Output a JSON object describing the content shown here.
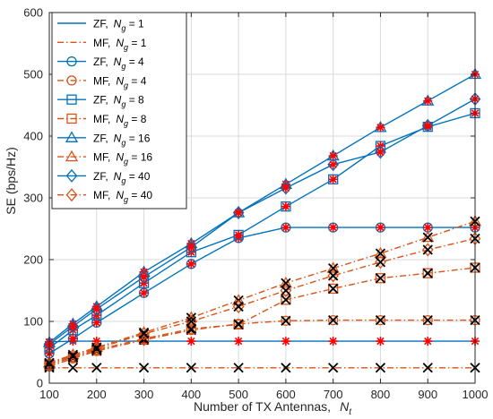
{
  "colors": {
    "zf": "#0072BD",
    "mf": "#D95319",
    "marker_red": "#FF0000",
    "marker_black": "#000000",
    "grid": "#D9D9D9",
    "axis": "#262626"
  },
  "chart_data": {
    "type": "line",
    "title": "",
    "xlabel": "Number of TX Antennas,",
    "xlabel_symbol": "N",
    "xlabel_subscript": "t",
    "ylabel": "SE (bps/Hz)",
    "xlim": [
      100,
      1000
    ],
    "ylim": [
      0,
      600
    ],
    "xticks": [
      100,
      200,
      300,
      400,
      500,
      600,
      700,
      800,
      900,
      1000
    ],
    "yticks": [
      0,
      100,
      200,
      300,
      400,
      500,
      600
    ],
    "grid": true,
    "legend_position": "top-left",
    "x": [
      100,
      150,
      200,
      300,
      400,
      500,
      600,
      700,
      800,
      900,
      1000
    ],
    "series": [
      {
        "name": "ZF,",
        "ng": "1",
        "scheme": "zf",
        "marker": "none",
        "values": [
          67,
          68,
          68,
          68,
          68,
          68,
          68,
          68,
          68,
          68,
          68
        ]
      },
      {
        "name": "MF,",
        "ng": "1",
        "scheme": "mf",
        "marker": "none",
        "values": [
          25,
          25,
          25,
          25,
          25,
          25,
          25,
          25,
          25,
          25,
          25
        ]
      },
      {
        "name": "ZF,",
        "ng": "4",
        "scheme": "zf",
        "marker": "circle",
        "values": [
          48,
          72,
          98,
          146,
          193,
          235,
          252,
          252,
          252,
          252,
          252
        ]
      },
      {
        "name": "MF,",
        "ng": "4",
        "scheme": "mf",
        "marker": "circle",
        "values": [
          27,
          40,
          52,
          70,
          86,
          96,
          101,
          102,
          102,
          102,
          102
        ]
      },
      {
        "name": "ZF,",
        "ng": "8",
        "scheme": "zf",
        "marker": "square",
        "values": [
          57,
          86,
          110,
          162,
          212,
          240,
          286,
          330,
          384,
          415,
          437
        ]
      },
      {
        "name": "MF,",
        "ng": "8",
        "scheme": "mf",
        "marker": "square",
        "values": [
          30,
          42,
          54,
          72,
          88,
          95,
          135,
          153,
          170,
          178,
          187
        ]
      },
      {
        "name": "ZF,",
        "ng": "16",
        "scheme": "zf",
        "marker": "triangle",
        "values": [
          66,
          96,
          124,
          180,
          226,
          276,
          322,
          368,
          414,
          457,
          500
        ]
      },
      {
        "name": "MF,",
        "ng": "16",
        "scheme": "mf",
        "marker": "triangle",
        "values": [
          33,
          46,
          58,
          82,
          106,
          134,
          162,
          186,
          210,
          236,
          262
        ]
      },
      {
        "name": "ZF,",
        "ng": "40",
        "scheme": "zf",
        "marker": "diamond",
        "values": [
          63,
          92,
          120,
          172,
          220,
          276,
          316,
          354,
          374,
          417,
          460
        ]
      },
      {
        "name": "MF,",
        "ng": "40",
        "scheme": "mf",
        "marker": "diamond",
        "values": [
          32,
          44,
          56,
          80,
          100,
          124,
          150,
          174,
          196,
          216,
          234
        ]
      }
    ]
  }
}
